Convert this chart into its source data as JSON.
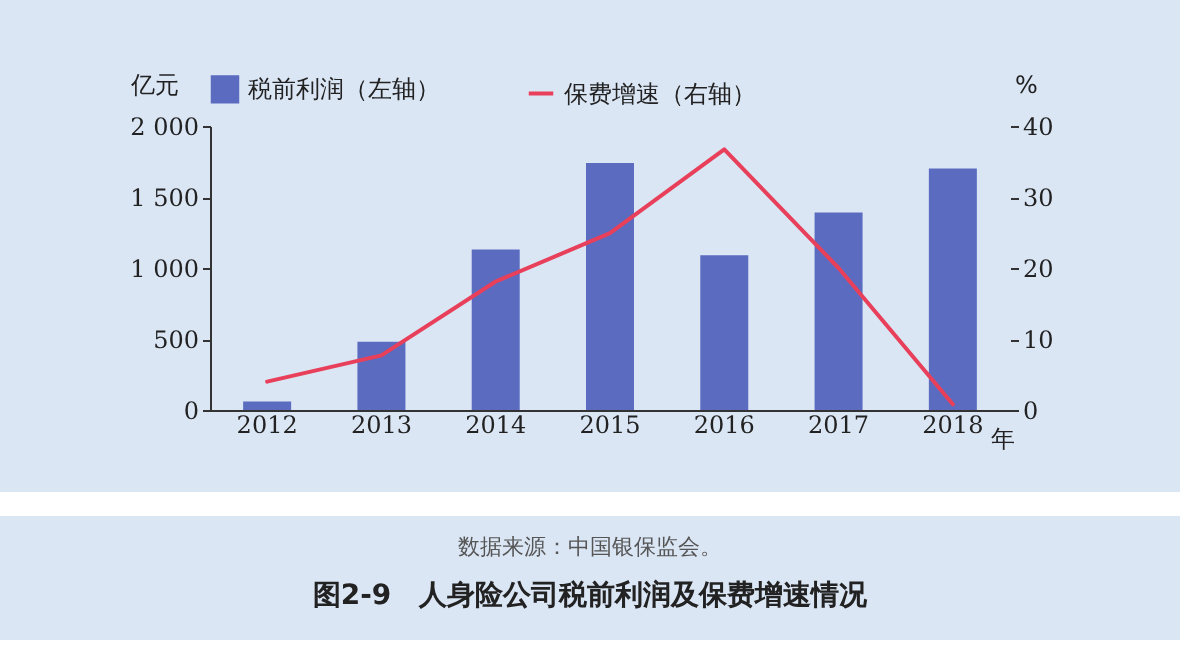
{
  "chart_data": {
    "type": "bar",
    "title": "图2-9　人身险公司税前利润及保费增速情况",
    "annotations": [
      "数据来源：中国银保监会。"
    ],
    "xlabel": "年",
    "ylabel": "亿元",
    "y2label": "%",
    "categories": [
      "2012",
      "2013",
      "2014",
      "2015",
      "2016",
      "2017",
      "2018"
    ],
    "series": [
      {
        "name": "税前利润（左轴）",
        "color": "#5b6bc0",
        "values": [
          60,
          480,
          1130,
          1740,
          1090,
          1390,
          1700
        ]
      },
      {
        "name": "保费增速（右轴）",
        "type": "line",
        "axis": "y2",
        "color": "#e8405a",
        "values": [
          4.0,
          7.7,
          18.1,
          24.9,
          36.7,
          20.0,
          0.8
        ]
      }
    ],
    "ylim": [
      0,
      2000
    ],
    "yticks": [
      0,
      500,
      {
        "value": 1000,
        "label": "1 000"
      },
      {
        "value": 1500,
        "label": "1 500"
      },
      {
        "value": 2000,
        "label": "2 000"
      }
    ],
    "y2lim": [
      0,
      40
    ],
    "y2ticks": [
      0,
      10,
      20,
      30,
      40
    ],
    "legend": "top",
    "grid": false,
    "marker": "none",
    "line_style": "solid"
  }
}
